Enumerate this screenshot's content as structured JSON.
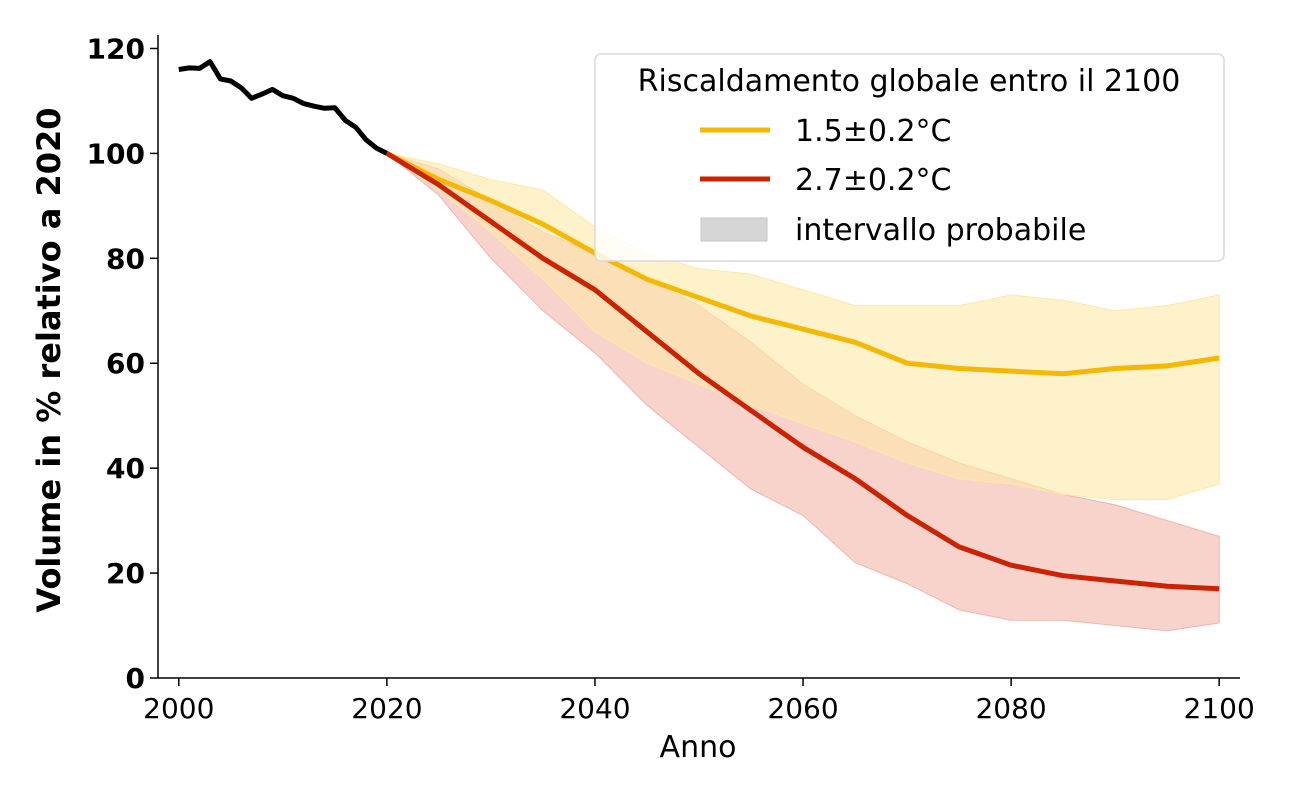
{
  "chart_data": {
    "type": "line",
    "title": "",
    "xlabel": "Anno",
    "ylabel": "Volume in % relativo a 2020",
    "xlim": [
      1998,
      2102
    ],
    "ylim": [
      0,
      122
    ],
    "x_ticks": [
      2000,
      2020,
      2040,
      2060,
      2080,
      2100
    ],
    "y_ticks": [
      0,
      20,
      40,
      60,
      80,
      100,
      120
    ],
    "grid": false,
    "legend_position": "top-right",
    "legend": {
      "title": "Riscaldamento globale entro il 2100",
      "range_label": "intervallo probabile"
    },
    "historical": {
      "name": "historical",
      "color": "#000000",
      "x": [
        2000,
        2001,
        2002,
        2003,
        2004,
        2005,
        2006,
        2007,
        2008,
        2009,
        2010,
        2011,
        2012,
        2013,
        2014,
        2015,
        2016,
        2017,
        2018,
        2019,
        2020
      ],
      "y": [
        116,
        116.3,
        116.2,
        117.5,
        114.2,
        113.8,
        112.5,
        110.5,
        111.3,
        112.2,
        111,
        110.5,
        109.5,
        109,
        108.6,
        108.7,
        106.3,
        105,
        102.6,
        101,
        100
      ]
    },
    "series": [
      {
        "name": "1.5±0.2°C",
        "color": "#f5b800",
        "band_color": "#fde9a8",
        "x": [
          2020,
          2025,
          2030,
          2035,
          2040,
          2045,
          2050,
          2055,
          2060,
          2065,
          2070,
          2075,
          2080,
          2085,
          2090,
          2095,
          2100
        ],
        "y": [
          100,
          95,
          91,
          86.5,
          81,
          76,
          72.5,
          69,
          66.5,
          64,
          60,
          59,
          58.5,
          58,
          59,
          59.5,
          61
        ],
        "low": [
          100,
          93,
          85,
          76,
          66,
          60,
          56,
          52,
          48.5,
          45,
          41,
          38,
          37,
          35,
          34,
          34,
          37
        ],
        "high": [
          100,
          98,
          95,
          93,
          86,
          81,
          78,
          77,
          74,
          71,
          71,
          71,
          73,
          72,
          70,
          71,
          73
        ]
      },
      {
        "name": "2.7±0.2°C",
        "color": "#cc2200",
        "band_color": "#f2b5aa",
        "x": [
          2020,
          2025,
          2030,
          2035,
          2040,
          2045,
          2050,
          2055,
          2060,
          2065,
          2070,
          2075,
          2080,
          2085,
          2090,
          2095,
          2100
        ],
        "y": [
          100,
          94,
          87,
          80,
          74,
          66,
          58,
          51,
          44,
          38,
          31,
          25,
          21.5,
          19.5,
          18.5,
          17.5,
          17
        ],
        "low": [
          100,
          92,
          80,
          70,
          62,
          52,
          44,
          36,
          31,
          22,
          18,
          13,
          11,
          11,
          10,
          9,
          10.5
        ],
        "high": [
          100,
          97,
          91,
          85,
          81,
          76,
          71,
          64,
          56,
          50,
          45,
          41,
          38,
          35,
          33,
          30,
          27
        ]
      }
    ]
  }
}
